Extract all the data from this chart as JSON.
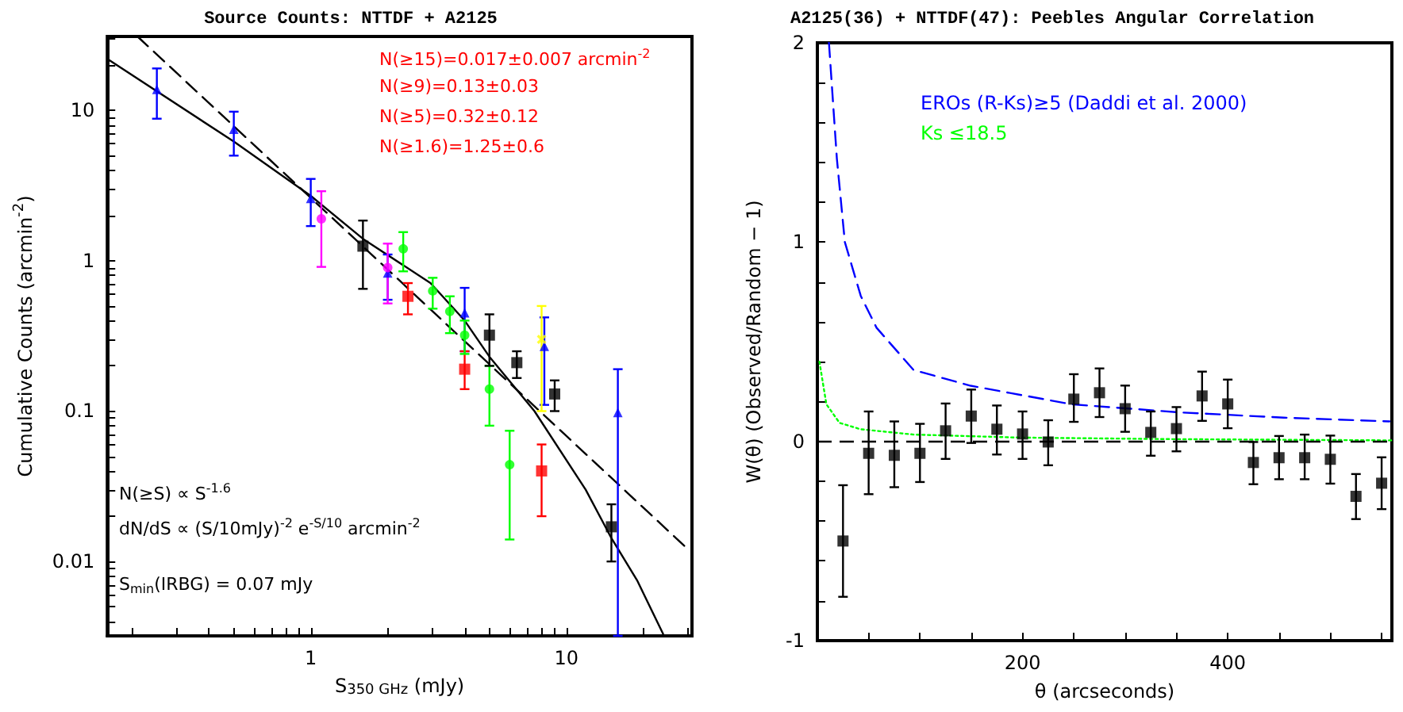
{
  "chart_data": [
    {
      "type": "scatter",
      "title": "Source Counts: NTTDF + A2125",
      "xlabel": "S$_{350 GHz}$ (mJy)",
      "ylabel": "Cumulative Counts (arcmin$^{-2}$)",
      "log": "xy",
      "xlim": [
        0.16,
        31
      ],
      "ylim": [
        0.0032,
        31
      ],
      "xticks": [
        {
          "value": 0.2,
          "label": null
        },
        {
          "value": 0.3,
          "label": null
        },
        {
          "value": 0.4,
          "label": null
        },
        {
          "value": 0.5,
          "label": null
        },
        {
          "value": 0.6,
          "label": null
        },
        {
          "value": 0.7,
          "label": null
        },
        {
          "value": 0.8,
          "label": null
        },
        {
          "value": 0.9,
          "label": null
        },
        1,
        {
          "value": 2,
          "label": null
        },
        {
          "value": 3,
          "label": null
        },
        {
          "value": 4,
          "label": null
        },
        {
          "value": 5,
          "label": null
        },
        {
          "value": 6,
          "label": null
        },
        {
          "value": 7,
          "label": null
        },
        {
          "value": 8,
          "label": null
        },
        {
          "value": 9,
          "label": null
        },
        10,
        {
          "value": 20,
          "label": null
        },
        {
          "value": 30,
          "label": null
        }
      ],
      "yticks": [
        {
          "value": 0.004,
          "label": null
        },
        {
          "value": 0.005,
          "label": null
        },
        {
          "value": 0.006,
          "label": null
        },
        {
          "value": 0.007,
          "label": null
        },
        {
          "value": 0.008,
          "label": null
        },
        {
          "value": 0.009,
          "label": null
        },
        0.01,
        {
          "value": 0.02,
          "label": null
        },
        {
          "value": 0.03,
          "label": null
        },
        {
          "value": 0.04,
          "label": null
        },
        {
          "value": 0.05,
          "label": null
        },
        {
          "value": 0.06,
          "label": null
        },
        {
          "value": 0.07,
          "label": null
        },
        {
          "value": 0.08,
          "label": null
        },
        {
          "value": 0.09,
          "label": null
        },
        0.1,
        {
          "value": 0.2,
          "label": null
        },
        {
          "value": 0.3,
          "label": null
        },
        {
          "value": 0.4,
          "label": null
        },
        {
          "value": 0.5,
          "label": null
        },
        {
          "value": 0.6,
          "label": null
        },
        {
          "value": 0.7,
          "label": null
        },
        {
          "value": 0.8,
          "label": null
        },
        {
          "value": 0.9,
          "label": null
        },
        1,
        {
          "value": 2,
          "label": null
        },
        {
          "value": 3,
          "label": null
        },
        {
          "value": 4,
          "label": null
        },
        {
          "value": 5,
          "label": null
        },
        {
          "value": 6,
          "label": null
        },
        {
          "value": 7,
          "label": null
        },
        {
          "value": 8,
          "label": null
        },
        {
          "value": 9,
          "label": null
        },
        10,
        {
          "value": 20,
          "label": null
        },
        {
          "value": 30,
          "label": null
        }
      ],
      "series": [
        {
          "type": "line",
          "color": "#000000",
          "line_style": "solid",
          "marker": "none",
          "x": [
            0.16,
            0.5,
            1,
            1.6,
            2.94,
            4,
            5,
            7.5,
            11.9,
            15,
            18.9,
            23.9
          ],
          "values": [
            22,
            6.2,
            2.7,
            1.4,
            0.71,
            0.4,
            0.23,
            0.1,
            0.03,
            0.0143,
            0.0075,
            0.0033
          ]
        },
        {
          "type": "line",
          "color": "#000000",
          "line_style": "dashed",
          "marker": "none",
          "x": [
            0.21,
            30
          ],
          "values": [
            31,
            0.012
          ]
        },
        {
          "color": "#0000ff",
          "marker": "triangle",
          "x": [
            0.25,
            0.5,
            1.0,
            2.0,
            4.0,
            8.2,
            15.9
          ],
          "values": [
            13.8,
            7.5,
            2.6,
            0.83,
            0.45,
            0.27,
            0.098
          ],
          "errors": [
            [
              8.8,
              19
            ],
            [
              5.0,
              9.8
            ],
            [
              1.7,
              3.5
            ],
            [
              0.55,
              1.1
            ],
            [
              0.25,
              0.66
            ],
            [
              0.11,
              0.42
            ],
            [
              0.0032,
              0.19
            ]
          ]
        },
        {
          "color": "#ff00ff",
          "marker": "circle",
          "x": [
            1.1,
            2.0
          ],
          "values": [
            1.9,
            0.9
          ],
          "errors": [
            [
              0.91,
              2.9
            ],
            [
              0.52,
              1.3
            ]
          ]
        },
        {
          "color": "#ff0000",
          "marker": "square",
          "x": [
            2.4,
            4.0,
            8.0
          ],
          "values": [
            0.58,
            0.19,
            0.04
          ],
          "errors": [
            [
              0.44,
              0.71
            ],
            [
              0.14,
              0.25
            ],
            [
              0.02,
              0.06
            ]
          ]
        },
        {
          "color": "#00ff00",
          "marker": "circle",
          "x": [
            2.3,
            3.0,
            3.5,
            4.0,
            5.0,
            6.0
          ],
          "values": [
            1.2,
            0.63,
            0.46,
            0.32,
            0.14,
            0.044
          ],
          "errors": [
            [
              0.85,
              1.55
            ],
            [
              0.48,
              0.77
            ],
            [
              0.33,
              0.58
            ],
            [
              0.24,
              0.4
            ],
            [
              0.08,
              0.2
            ],
            [
              0.014,
              0.074
            ]
          ]
        },
        {
          "color": "#ffff00",
          "marker": "cross",
          "x": [
            8.0
          ],
          "values": [
            0.3
          ],
          "errors": [
            [
              0.1,
              0.5
            ]
          ]
        },
        {
          "color": "#000000",
          "marker": "square",
          "x": [
            1.6,
            5.0,
            6.4,
            9.0,
            15.0
          ],
          "values": [
            1.25,
            0.32,
            0.21,
            0.13,
            0.017
          ],
          "errors": [
            [
              0.65,
              1.85
            ],
            [
              0.2,
              0.44
            ],
            [
              0.166,
              0.25
            ],
            [
              0.1,
              0.16
            ],
            [
              0.01,
              0.024
            ]
          ]
        }
      ],
      "annotations": [
        "N(≥15)=0.017±0.007 arcmin$^{-2}$",
        "N(≥9)=0.13±0.03",
        "N(≥5)=0.32±0.12",
        "N(≥1.6)=1.25±0.6",
        "N(≥S) ∝ S$^{-1.6}$",
        "dN/dS ∝ (S/10mJy)$^{-2}$ e$^{-S/10}$ arcmin$^{-2}$",
        "S$_{min}$(IRBG) = 0.07 mJy"
      ]
    },
    {
      "type": "scatter",
      "title": "A2125(36) + NTTDF(47): Peebles Angular Correlation",
      "xlabel": "θ (arcseconds)",
      "ylabel": "W(θ) (Observed/Random − 1)",
      "marker": "square",
      "legend": "top left",
      "xlim": [
        0,
        560
      ],
      "ylim": [
        -1,
        2
      ],
      "xticks": [
        {
          "value": 50,
          "label": null
        },
        {
          "value": 100,
          "label": null
        },
        {
          "value": 150,
          "label": null
        },
        200,
        {
          "value": 250,
          "label": null
        },
        {
          "value": 300,
          "label": null
        },
        {
          "value": 350,
          "label": null
        },
        400,
        {
          "value": 450,
          "label": null
        },
        {
          "value": 500,
          "label": null
        },
        {
          "value": 550,
          "label": null
        }
      ],
      "yticks": [
        -1,
        {
          "value": -0.8,
          "label": null
        },
        {
          "value": -0.6,
          "label": null
        },
        {
          "value": -0.4,
          "label": null
        },
        {
          "value": -0.2,
          "label": null
        },
        0,
        {
          "value": 0.2,
          "label": null
        },
        {
          "value": 0.4,
          "label": null
        },
        {
          "value": 0.6,
          "label": null
        },
        {
          "value": 0.8,
          "label": null
        },
        1,
        {
          "value": 1.2,
          "label": null
        },
        {
          "value": 1.4,
          "label": null
        },
        {
          "value": 1.6,
          "label": null
        },
        {
          "value": 1.8,
          "label": null
        },
        2
      ],
      "ref_lines": [
        {
          "axis": "y",
          "value": 0,
          "color": "#000000",
          "line_style": "dashed"
        }
      ],
      "series": [
        {
          "name": "EROs (R-Ks)≥5 (Daddi et al. 2000)",
          "type": "line",
          "color": "#0000ff",
          "line_style": "dashed",
          "marker": "none",
          "x": [
            11.3,
            19,
            26.8,
            42.3,
            57.7,
            93.8,
            149.5,
            248,
            351.5,
            454.6,
            557.7
          ],
          "values": [
            2.0,
            1.42,
            1.0,
            0.73,
            0.57,
            0.358,
            0.279,
            0.186,
            0.146,
            0.119,
            0.1
          ]
        },
        {
          "name": "Ks ≤18.5",
          "type": "line",
          "color": "#00ff00",
          "line_style": "dotted",
          "marker": "none",
          "x": [
            2,
            8.8,
            21.6,
            42,
            94,
            197,
            351.5,
            560
          ],
          "values": [
            0.4,
            0.186,
            0.093,
            0.061,
            0.034,
            0.019,
            0.011,
            0.005
          ]
        },
        {
          "color": "#000000",
          "x": [
            25,
            50,
            75,
            100,
            125,
            150,
            175,
            200,
            225,
            250,
            275,
            300,
            325,
            350,
            375,
            400,
            425,
            450,
            475,
            500,
            525,
            550
          ],
          "values": [
            -0.5,
            -0.06,
            -0.07,
            -0.06,
            0.053,
            0.127,
            0.061,
            0.037,
            -0.003,
            0.212,
            0.244,
            0.164,
            0.045,
            0.064,
            0.228,
            0.188,
            -0.106,
            -0.082,
            -0.082,
            -0.09,
            -0.276,
            -0.21
          ],
          "errors": [
            [
              -0.78,
              -0.22
            ],
            [
              -0.265,
              0.15
            ],
            [
              -0.23,
              0.1
            ],
            [
              -0.204,
              0.088
            ],
            [
              -0.088,
              0.19
            ],
            [
              -0.008,
              0.26
            ],
            [
              -0.066,
              0.18
            ],
            [
              -0.088,
              0.15
            ],
            [
              -0.12,
              0.106
            ],
            [
              0.098,
              0.337
            ],
            [
              0.122,
              0.366
            ],
            [
              0.048,
              0.28
            ],
            [
              -0.072,
              0.15
            ],
            [
              -0.05,
              0.172
            ],
            [
              0.103,
              0.35
            ],
            [
              0.066,
              0.31
            ],
            [
              -0.215,
              -0.003
            ],
            [
              -0.19,
              0.027
            ],
            [
              -0.19,
              0.034
            ],
            [
              -0.212,
              0.029
            ],
            [
              -0.39,
              -0.164
            ],
            [
              -0.34,
              -0.08
            ]
          ]
        }
      ]
    }
  ]
}
